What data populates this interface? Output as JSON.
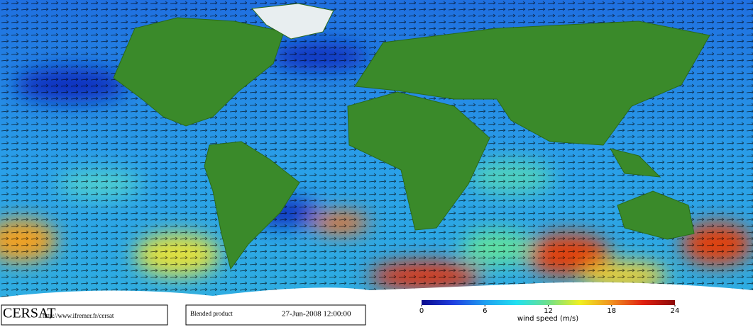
{
  "footer": {
    "logo": "CERSAT",
    "url": "http://www.ifremer.fr/cersat",
    "product": "Blended product",
    "date": "27-Jun-2008 12:00:00"
  },
  "colorbar": {
    "label": "wind speed (m/s)",
    "range": [
      0,
      24
    ],
    "ticks": [
      0,
      6,
      12,
      18,
      24
    ],
    "colors": [
      "#0a0a8c",
      "#1f3fe0",
      "#1f9ff0",
      "#22e0f0",
      "#6fe08a",
      "#f0f020",
      "#f09020",
      "#e02010",
      "#8c0a0a"
    ]
  }
}
